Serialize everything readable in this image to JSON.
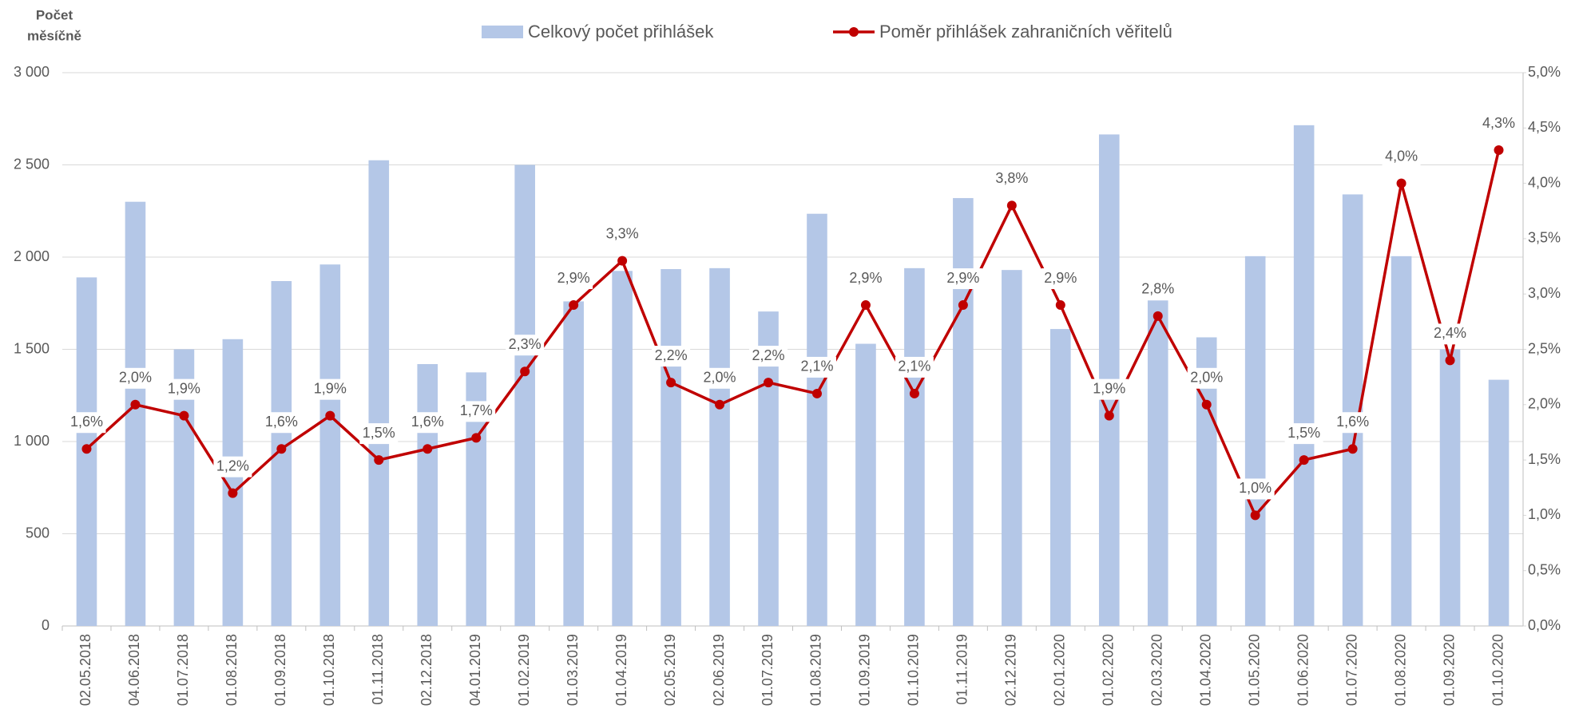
{
  "chart_data": {
    "type": "bar_line",
    "y_axis_label": [
      "Počet",
      "měsíčně"
    ],
    "categories": [
      "02.05.2018",
      "04.06.2018",
      "01.07.2018",
      "01.08.2018",
      "01.09.2018",
      "01.10.2018",
      "01.11.2018",
      "02.12.2018",
      "04.01.2019",
      "01.02.2019",
      "01.03.2019",
      "01.04.2019",
      "02.05.2019",
      "02.06.2019",
      "01.07.2019",
      "01.08.2019",
      "01.09.2019",
      "01.10.2019",
      "01.11.2019",
      "02.12.2019",
      "02.01.2020",
      "01.02.2020",
      "02.03.2020",
      "01.04.2020",
      "01.05.2020",
      "01.06.2020",
      "01.07.2020",
      "01.08.2020",
      "01.09.2020",
      "01.10.2020"
    ],
    "series": [
      {
        "name": "Celkový počet přihlášek",
        "color": "#b4c7e7",
        "type": "bar",
        "values": [
          1890,
          2300,
          1500,
          1555,
          1870,
          1960,
          2525,
          1420,
          1375,
          2500,
          1760,
          1925,
          1935,
          1940,
          1705,
          2235,
          1530,
          1940,
          2320,
          1930,
          1610,
          2665,
          1765,
          1565,
          2005,
          2715,
          2340,
          2005,
          1500,
          1335
        ]
      },
      {
        "name": "Poměr přihlášek zahraničních věřitelů",
        "color": "#c00000",
        "type": "line",
        "axis": "y2",
        "values": [
          1.6,
          2.0,
          1.9,
          1.2,
          1.6,
          1.9,
          1.5,
          1.6,
          1.7,
          2.3,
          2.9,
          3.3,
          2.2,
          2.0,
          2.2,
          2.1,
          2.9,
          2.1,
          2.9,
          3.8,
          2.9,
          1.9,
          2.8,
          2.0,
          1.0,
          1.5,
          1.6,
          4.0,
          2.4,
          4.3
        ],
        "value_labels": [
          "1,6%",
          "2,0%",
          "1,9%",
          "1,2%",
          "1,6%",
          "1,9%",
          "1,5%",
          "1,6%",
          "1,7%",
          "2,3%",
          "2,9%",
          "3,3%",
          "2,2%",
          "2,0%",
          "2,2%",
          "2,1%",
          "2,9%",
          "2,1%",
          "2,9%",
          "3,8%",
          "2,9%",
          "1,9%",
          "2,8%",
          "2,0%",
          "1,0%",
          "1,5%",
          "1,6%",
          "4,0%",
          "2,4%",
          "4,3%"
        ]
      }
    ],
    "ylim": [
      0,
      3000
    ],
    "yticks": [
      0,
      500,
      {
        "value": 1000,
        "label": "1 000"
      },
      {
        "value": 1500,
        "label": "1 500"
      },
      {
        "value": 2000,
        "label": "2 000"
      },
      {
        "value": 2500,
        "label": "2 500"
      },
      {
        "value": 3000,
        "label": "3 000"
      }
    ],
    "y2lim": [
      0,
      5
    ],
    "y2ticks": [
      {
        "value": 0,
        "label": "0,0%"
      },
      {
        "value": 0.5,
        "label": "0,5%"
      },
      {
        "value": 1,
        "label": "1,0%"
      },
      {
        "value": 1.5,
        "label": "1,5%"
      },
      {
        "value": 2,
        "label": "2,0%"
      },
      {
        "value": 2.5,
        "label": "2,5%"
      },
      {
        "value": 3,
        "label": "3,0%"
      },
      {
        "value": 3.5,
        "label": "3,5%"
      },
      {
        "value": 4,
        "label": "4,0%"
      },
      {
        "value": 4.5,
        "label": "4,5%"
      },
      {
        "value": 5,
        "label": "5,0%"
      }
    ],
    "grid": true,
    "legend": "top"
  }
}
